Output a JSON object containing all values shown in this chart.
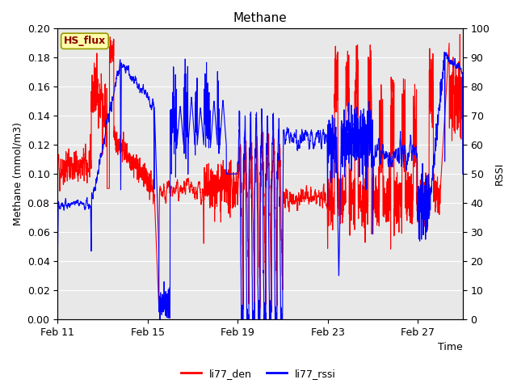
{
  "title": "Methane",
  "ylabel_left": "Methane (mmol/m3)",
  "ylabel_right": "RSSI",
  "xlabel": "Time",
  "ylim_left": [
    0.0,
    0.2
  ],
  "ylim_right": [
    0,
    100
  ],
  "yticks_left": [
    0.0,
    0.02,
    0.04,
    0.06,
    0.08,
    0.1,
    0.12,
    0.14,
    0.16,
    0.18,
    0.2
  ],
  "yticks_right": [
    0,
    10,
    20,
    30,
    40,
    50,
    60,
    70,
    80,
    90,
    100
  ],
  "xtick_labels": [
    "Feb 11",
    "Feb 15",
    "Feb 19",
    "Feb 23",
    "Feb 27"
  ],
  "xtick_positions": [
    0,
    4,
    8,
    12,
    16
  ],
  "color_red": "#ff0000",
  "color_blue": "#0000ff",
  "label_red": "li77_den",
  "label_blue": "li77_rssi",
  "hs_flux_label": "HS_flux",
  "plot_bg_color": "#e8e8e8",
  "fig_bg_color": "#ffffff",
  "grid_color": "#ffffff",
  "title_fontsize": 11,
  "axis_label_fontsize": 9,
  "tick_fontsize": 9,
  "legend_fontsize": 9,
  "line_width": 0.8
}
